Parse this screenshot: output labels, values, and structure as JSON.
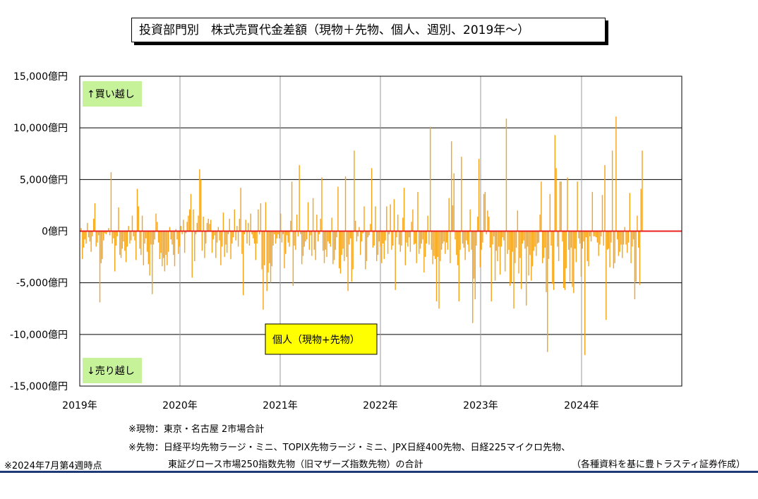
{
  "chart_data": {
    "type": "bar",
    "title": "投資部門別　株式売買代金差額（現物＋先物、個人、週別、2019年～）",
    "y_tick_labels": [
      "15,000億円",
      "10,000億円",
      "5,000億円",
      "0億円",
      "-5,000億円",
      "-10,000億円",
      "-15,000億円"
    ],
    "ylim": [
      -15000,
      15000
    ],
    "y_unit": "億円",
    "x_tick_labels": [
      "2019年",
      "2020年",
      "2021年",
      "2022年",
      "2023年",
      "2024年"
    ],
    "buy_label": "↑買い越し",
    "sell_label": "↓売り越し",
    "series_label": "個人（現物+先物）",
    "frequency": "weekly",
    "start": "2019年1月第1週",
    "end": "2024年7月第4週",
    "grid": true,
    "series": [
      {
        "name": "個人（現物+先物）",
        "values": [
          300,
          -2700,
          -1600,
          -800,
          -1200,
          800,
          -600,
          -1000,
          -2000,
          -500,
          1200,
          2700,
          -1500,
          -1100,
          -400,
          -6900,
          -3100,
          -2700,
          -900,
          -200,
          -300,
          -100,
          300,
          -400,
          5700,
          -1200,
          -700,
          -3900,
          -1400,
          -500,
          2300,
          -2300,
          -2600,
          -1700,
          -1000,
          -1900,
          -3000,
          -1500,
          500,
          -1200,
          -900,
          1500,
          -500,
          -900,
          -2800,
          4100,
          2400,
          -1700,
          -2300,
          1500,
          -3300,
          -1200,
          -700,
          -2000,
          -3200,
          -4300,
          -1300,
          -6100,
          -1300,
          -800,
          1700,
          900,
          -1100,
          -2700,
          -2100,
          -3400,
          -2600,
          -3900,
          -2300,
          -3300,
          -2000,
          400,
          -800,
          -1300,
          -2300,
          -3400,
          200,
          -800,
          -2200,
          -1500,
          500,
          -300,
          1100,
          -2100,
          -200,
          900,
          1500,
          2100,
          3600,
          -4500,
          2100,
          -2900,
          -300,
          800,
          1500,
          6000,
          5000,
          -1900,
          1400,
          -2600,
          -1200,
          800,
          1200,
          700,
          1100,
          -2100,
          -800,
          -400,
          -2600,
          -1100,
          400,
          -900,
          -3300,
          -1500,
          1800,
          -2500,
          -1300,
          -2100,
          -300,
          1200,
          -2700,
          -1200,
          -600,
          2100,
          -900,
          500,
          -1500,
          1200,
          4200,
          -2200,
          -6200,
          -300,
          1100,
          -1200,
          800,
          -1400,
          1700,
          -300,
          -700,
          -1200,
          -2800,
          -1200,
          2100,
          -300,
          2700,
          -3700,
          -7600,
          -3300,
          2800,
          -5800,
          -4000,
          -3100,
          -5000,
          -3400,
          -1400,
          -300,
          -1200,
          -700,
          -300,
          -700,
          1700,
          -1100,
          -300,
          -3600,
          -2200,
          -400,
          -1100,
          -1500,
          1000,
          4800,
          -5300,
          -1400,
          -1800,
          1600,
          -500,
          6400,
          -300,
          -3200,
          -2400,
          -1500,
          -1000,
          -800,
          2800,
          -1800,
          -400,
          -2400,
          3200,
          -1800,
          -2800,
          1600,
          -1000,
          -300,
          1200,
          5200,
          -1900,
          -3100,
          -1800,
          -2500,
          -1000,
          -1200,
          -1500,
          1300,
          -3200,
          -2800,
          -1800,
          -600,
          4300,
          -3600,
          -4100,
          -2300,
          -1700,
          -2900,
          5300,
          -2500,
          -5800,
          -1300,
          -700,
          -4900,
          -3700,
          7800,
          1000,
          -1000,
          -500,
          400,
          -2300,
          -1000,
          -200,
          2400,
          -3700,
          -2900,
          -600,
          -400,
          700,
          6100,
          -1600,
          -1400,
          2400,
          -2900,
          -2300,
          -1000,
          -1500,
          -3100,
          -1200,
          -2700,
          -900,
          2400,
          -2200,
          -300,
          2600,
          -1800,
          -1400,
          3100,
          -5700,
          -600,
          1600,
          -1300,
          -2000,
          -1400,
          1300,
          4200,
          -3300,
          -1100,
          -1500,
          -600,
          -2000,
          900,
          2100,
          -1300,
          -1200,
          -3100,
          3800,
          -2200,
          -1700,
          -1200,
          -800,
          -4000,
          -2500,
          -1200,
          1500,
          -1300,
          10100,
          -1800,
          -3200,
          -2400,
          -2700,
          -6800,
          -2500,
          -7500,
          -2900,
          -1800,
          -1200,
          -1000,
          -2200,
          -1100,
          -1800,
          3200,
          -3100,
          8700,
          2500,
          5600,
          -800,
          -2300,
          -3300,
          -6800,
          -1800,
          7200,
          -1200,
          -1600,
          -2800,
          -900,
          -1300,
          -2000,
          2100,
          -1800,
          -8900,
          -4600,
          -6600,
          -1400,
          1400,
          7000,
          -3500,
          -1800,
          -1100,
          3600,
          3800,
          -300,
          2000,
          1400,
          -1600,
          -6800,
          -1300,
          -500,
          -4800,
          -1900,
          -2900,
          -1500,
          -4200,
          -1500,
          -600,
          -900,
          -3900,
          10900,
          -2200,
          -1800,
          -5300,
          -5000,
          -2000,
          -7500,
          -3100,
          -1600,
          2000,
          -4100,
          -2600,
          -5600,
          -1200,
          -900,
          -1700,
          -7200,
          -1500,
          -4300,
          -2300,
          -4800,
          -3400,
          -1900,
          -1500,
          -2400,
          -1200,
          -1100,
          1600,
          4800,
          -3100,
          -2600,
          -1600,
          -5900,
          -11700,
          -2700,
          3600,
          -1400,
          -5100,
          -5700,
          9300,
          6100,
          -1500,
          -2900,
          4800,
          4800,
          -1000,
          -5500,
          -5700,
          -3600,
          5200,
          -1800,
          -4900,
          -1600,
          -5400,
          -6000,
          -1700,
          -3000,
          4800,
          -700,
          -1200,
          -4400,
          -1700,
          -1000,
          -12000,
          -600,
          -2900,
          -3400,
          -500,
          -1000,
          3800,
          -500,
          -500,
          -600,
          -1100,
          -2400,
          -1300,
          -500,
          3500,
          -1400,
          6400,
          -8600,
          -1800,
          -1700,
          -3500,
          -1100,
          7800,
          -3600,
          -3100,
          11100,
          -800,
          -2400,
          -2000,
          -1300,
          -2600,
          -1300,
          400,
          -1300,
          -2100,
          -1100,
          3700,
          -3100,
          -1500,
          -800,
          -6600,
          -4900,
          1500,
          -1600,
          -5200,
          4100,
          7800
        ]
      }
    ]
  },
  "notes": {
    "spot": "※現物：東京・名古屋 2市場合計",
    "futures_line1": "※先物：日経平均先物ラージ・ミニ、TOPIX先物ラージ・ミニ、JPX日経400先物、日経225マイクロ先物、",
    "futures_line2": "東証グロース市場250指数先物（旧マザーズ指数先物）の合計",
    "as_of": "※2024年7月第4週時点",
    "source": "（各種資料を基に豊トラスティ証券作成）"
  },
  "colors": {
    "bar": "#f5a31a",
    "zero_line": "#e8231e",
    "label_green": "#c6f29a",
    "label_yellow": "#ffff00",
    "grid_x": "#9a9a9a",
    "rule": "#1f3b77"
  }
}
